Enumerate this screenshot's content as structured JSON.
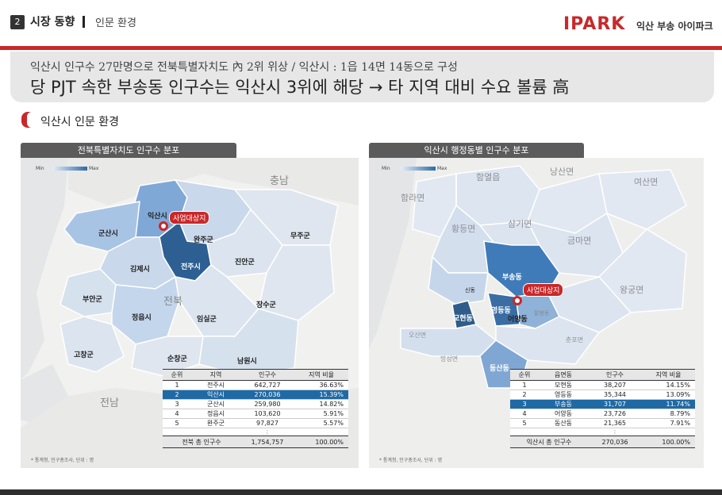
{
  "header": {
    "section_number": "2",
    "section_title": "시장 동향",
    "section_sub": "인문 환경",
    "logo": "IPARK",
    "logo_sub": "익산 부송 아이파크"
  },
  "headline": {
    "line1": "익산시 인구수 27만명으로 전북특별자치도 內 2위 위상 /  익산시 : 1읍 14면 14동으로 구성",
    "line2": "당 PJT 속한 부송동 인구수는 익산시 3위에 해당 → 타 지역 대비 수요 볼륨 高"
  },
  "subheader": "익산시 인문 환경",
  "left_panel": {
    "title": "전북특별자치도 인구수 분포",
    "legend_min": "Min",
    "legend_max": "Max",
    "labels": {
      "chungnam": "충남",
      "jeonbuk": "전북",
      "jeonnam": "전남",
      "iksan": "익산시",
      "gunsan": "군산시",
      "wanju": "완주군",
      "muju": "무주군",
      "gimje": "김제시",
      "jeonju": "전주시",
      "jinan": "진안군",
      "buan": "부안군",
      "jeongeup": "정읍시",
      "imsil": "임실군",
      "jangsu": "장수군",
      "gochang": "고창군",
      "sunchang": "순창군",
      "namwon": "남원시"
    },
    "pin_label": "사업대상지",
    "table": {
      "headers": [
        "순위",
        "지역",
        "인구수",
        "지역 비율"
      ],
      "rows": [
        [
          "1",
          "전주시",
          "642,727",
          "36.63%"
        ],
        [
          "2",
          "익산시",
          "270,036",
          "15.39%"
        ],
        [
          "3",
          "군산시",
          "259,980",
          "14.82%"
        ],
        [
          "4",
          "정읍시",
          "103,620",
          "5.91%"
        ],
        [
          "5",
          "완주군",
          "97,827",
          "5.57%"
        ]
      ],
      "dots": "⋮",
      "total": [
        "전북 총 인구수",
        "1,754,757",
        "100.00%"
      ]
    },
    "source": "* 통계청, 인구총조사, 단위 : 명"
  },
  "right_panel": {
    "title": "익산시 행정동별 인구수 분포",
    "legend_min": "Min",
    "legend_max": "Max",
    "labels": {
      "hamyeol": "함열읍",
      "nangsan": "낭산면",
      "yeosan": "여산면",
      "hamra": "함라면",
      "hwangdeung": "황등면",
      "samgi": "삼기면",
      "geumma": "금마면",
      "busong": "부송동",
      "wanggung": "왕궁면",
      "sindong": "신동",
      "mohyeon": "모현동",
      "yeongdeung": "영등동",
      "eoyang": "어양동",
      "pyeonghwa": "팔봉동",
      "oosan": "오산면",
      "chunpo": "춘포면",
      "dongsan": "동산동",
      "mangseong": "망성면"
    },
    "pin_label": "사업대상지",
    "table": {
      "headers": [
        "순위",
        "읍면동",
        "인구수",
        "지역 비율"
      ],
      "rows": [
        [
          "1",
          "모현동",
          "38,207",
          "14.15%"
        ],
        [
          "2",
          "영등동",
          "35,344",
          "13.09%"
        ],
        [
          "3",
          "부송동",
          "31,707",
          "11.74%"
        ],
        [
          "4",
          "어양동",
          "23,726",
          "8.79%"
        ],
        [
          "5",
          "동산동",
          "21,365",
          "7.91%"
        ]
      ],
      "dots": "⋮",
      "total": [
        "익산시 총 인구수",
        "270,036",
        "100.00%"
      ]
    },
    "source": "* 통계청, 인구총조사, 단위 : 명"
  },
  "colors": {
    "accent_red": "#c8282a",
    "highlight_blue": "#1f6aa5",
    "dark_blue": "#2f5f8f",
    "mid_blue": "#6f9ccc",
    "light_blue": "#b5cbe6"
  }
}
